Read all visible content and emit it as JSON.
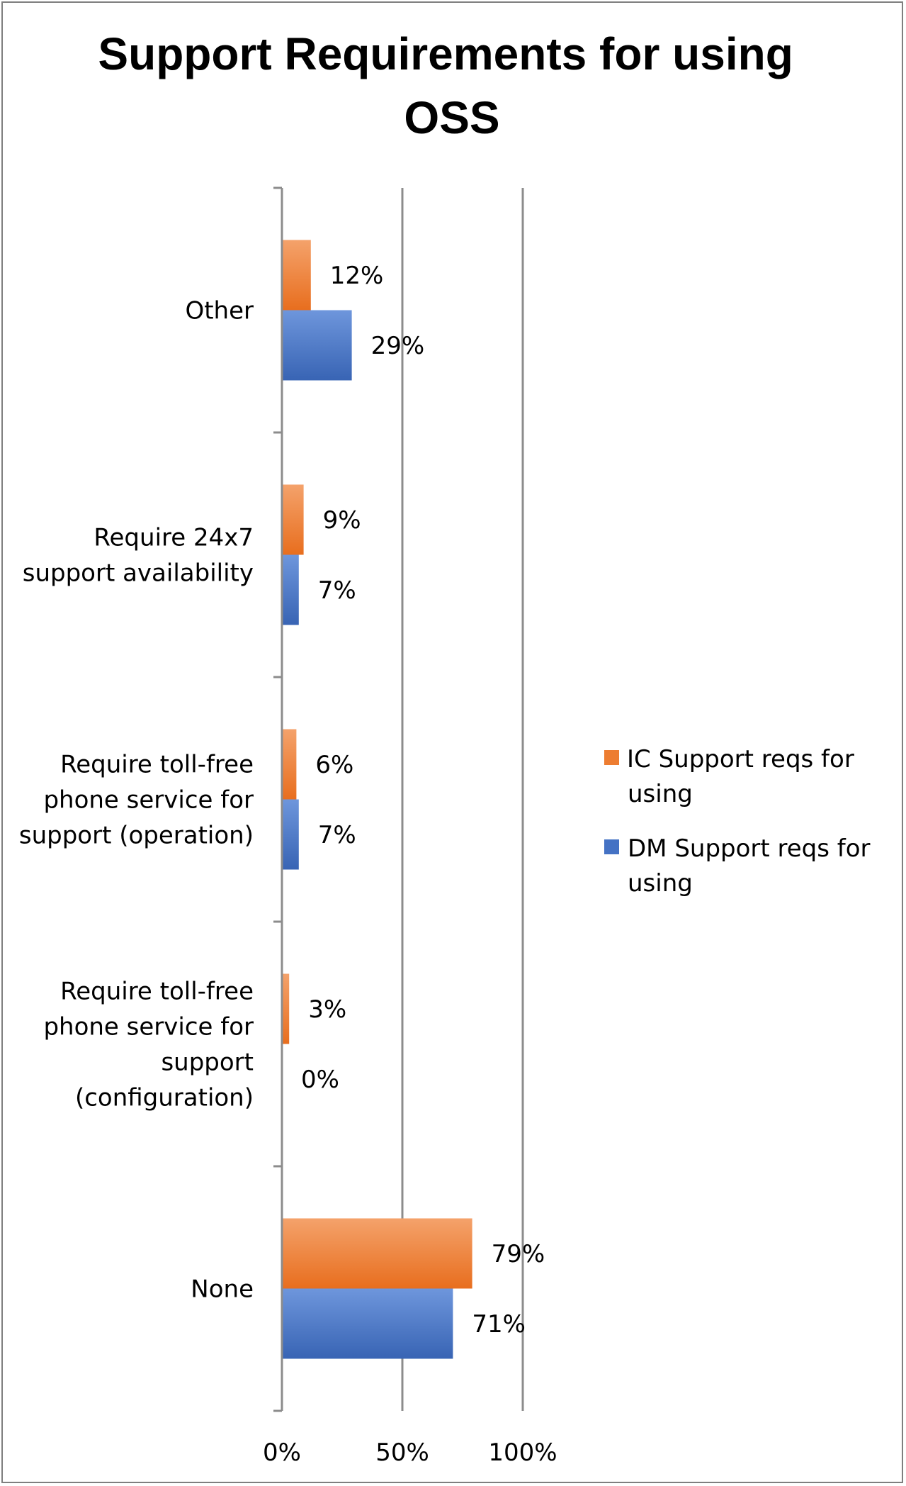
{
  "chart_data": {
    "type": "bar",
    "orientation": "horizontal",
    "title": "Support Requirements for using OSS",
    "categories": [
      "Other",
      "Require 24x7 support availability",
      "Require toll-free phone service for support (operation)",
      "Require toll-free phone service for support (configuration)",
      "None"
    ],
    "category_lines": [
      [
        "Other"
      ],
      [
        "Require 24x7",
        "support availability"
      ],
      [
        "Require toll-free",
        "phone service for",
        "support (operation)"
      ],
      [
        "Require toll-free",
        "phone service for",
        "support",
        "(configuration)"
      ],
      [
        "None"
      ]
    ],
    "series": [
      {
        "name": "IC Support reqs for using",
        "name_lines": [
          "IC Support reqs for",
          "using"
        ],
        "color": "#ED7D31",
        "values": [
          12,
          9,
          6,
          3,
          79
        ],
        "labels": [
          "12%",
          "9%",
          "6%",
          "3%",
          "79%"
        ]
      },
      {
        "name": "DM Support reqs for using",
        "name_lines": [
          "DM Support reqs for",
          "using"
        ],
        "color": "#4472C4",
        "values": [
          29,
          7,
          7,
          0,
          71
        ],
        "labels": [
          "29%",
          "7%",
          "7%",
          "0%",
          "71%"
        ]
      }
    ],
    "xlim": [
      0,
      100
    ],
    "x_ticks": [
      0,
      50,
      100
    ],
    "x_tick_labels": [
      "0%",
      "50%",
      "100%"
    ],
    "grid": true,
    "legend_position": "right"
  }
}
